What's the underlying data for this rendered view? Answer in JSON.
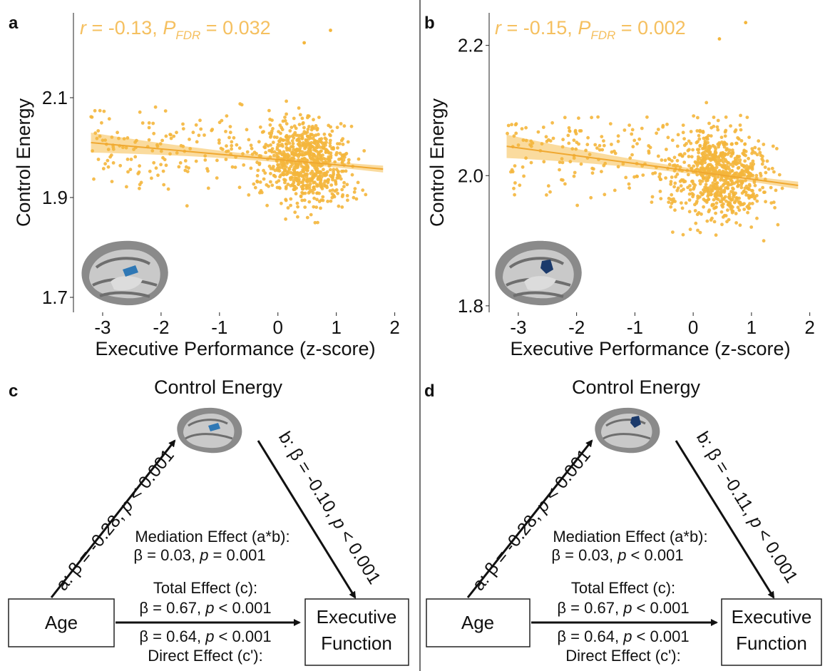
{
  "chart_data": [
    {
      "panel": "a",
      "type": "scatter",
      "xlabel": "Executive Performance (z-score)",
      "ylabel": "Control Energy",
      "xlim": [
        -3.5,
        2.2
      ],
      "ylim": [
        1.67,
        2.27
      ],
      "xticks": [
        "-3",
        "-2",
        "-1",
        "0",
        "1",
        "2"
      ],
      "yticks": [
        "1.7",
        "1.9",
        "2.1"
      ],
      "stat": {
        "r_label": "r",
        "r_text": " = -0.13, ",
        "p_label": "P",
        "p_sub": "FDR",
        "p_text": " = 0.032"
      },
      "fit": {
        "x": [
          -3.2,
          1.8
        ],
        "y": [
          2.01,
          1.957
        ],
        "ci_halfwidth_ends": 0.02,
        "ci_halfwidth_mid": 0.005
      },
      "color": "#f4b63c",
      "points": {
        "n": 900,
        "x_center": 0.5,
        "y_center": 1.975,
        "x_range": [
          -3.2,
          1.8
        ],
        "y_range": [
          1.72,
          2.24
        ]
      }
    },
    {
      "panel": "b",
      "type": "scatter",
      "xlabel": "Executive Performance (z-score)",
      "ylabel": "Control Energy",
      "xlim": [
        -3.5,
        2.2
      ],
      "ylim": [
        1.79,
        2.25
      ],
      "xticks": [
        "-3",
        "-2",
        "-1",
        "0",
        "1",
        "2"
      ],
      "yticks": [
        "1.8",
        "2.0",
        "2.2"
      ],
      "stat": {
        "r_label": "r",
        "r_text": " = -0.15, ",
        "p_label": "P",
        "p_sub": "FDR",
        "p_text": " = 0.002"
      },
      "fit": {
        "x": [
          -3.2,
          1.8
        ],
        "y": [
          2.045,
          1.985
        ],
        "ci_halfwidth_ends": 0.018,
        "ci_halfwidth_mid": 0.004
      },
      "color": "#f4b63c",
      "points": {
        "n": 900,
        "x_center": 0.5,
        "y_center": 2.01,
        "x_range": [
          -3.2,
          1.8
        ],
        "y_range": [
          1.81,
          2.24
        ]
      }
    }
  ],
  "panels": {
    "a": {
      "label": "a"
    },
    "b": {
      "label": "b"
    },
    "c": {
      "label": "c",
      "title": "Control Energy",
      "path_a": {
        "prefix": "a: β = -0.28, ",
        "p": "p",
        "suffix": " < 0.001"
      },
      "path_b": {
        "prefix": "b: β = -0.10, ",
        "p": "p",
        "suffix": " < 0.001"
      },
      "mediation_title": "Mediation Effect (a*b):",
      "mediation_value": {
        "prefix": "β = 0.03, ",
        "p": "p",
        "suffix": " = 0.001"
      },
      "total_title": "Total Effect (c):",
      "total_value": {
        "prefix": "β = 0.67, ",
        "p": "p",
        "suffix": " < 0.001"
      },
      "direct_value": {
        "prefix": "β = 0.64, ",
        "p": "p",
        "suffix": " < 0.001"
      },
      "direct_title": "Direct Effect (c'):",
      "box_left": "Age",
      "box_right_1": "Executive",
      "box_right_2": "Function"
    },
    "d": {
      "label": "d",
      "title": "Control Energy",
      "path_a": {
        "prefix": "a: β = -0.28, ",
        "p": "p",
        "suffix": " < 0.001"
      },
      "path_b": {
        "prefix": "b: β = -0.11, ",
        "p": "p",
        "suffix": " < 0.001"
      },
      "mediation_title": "Mediation Effect (a*b):",
      "mediation_value": {
        "prefix": "β = 0.03, ",
        "p": "p",
        "suffix": " < 0.001"
      },
      "total_title": "Total Effect (c):",
      "total_value": {
        "prefix": "β = 0.67, ",
        "p": "p",
        "suffix": " < 0.001"
      },
      "direct_value": {
        "prefix": "β = 0.64, ",
        "p": "p",
        "suffix": " < 0.001"
      },
      "direct_title": "Direct Effect (c'):",
      "box_left": "Age",
      "box_right_1": "Executive",
      "box_right_2": "Function"
    }
  },
  "colors": {
    "points": "#f4b63c",
    "fit_line": "#f0a830",
    "ci_band": "#f8cf7e",
    "stat_text": "#f5c060",
    "region_a": "#2f78b5",
    "region_b": "#1b3a6b",
    "brain_light": "#c8c8c8",
    "brain_dark": "#7a7a7a"
  }
}
